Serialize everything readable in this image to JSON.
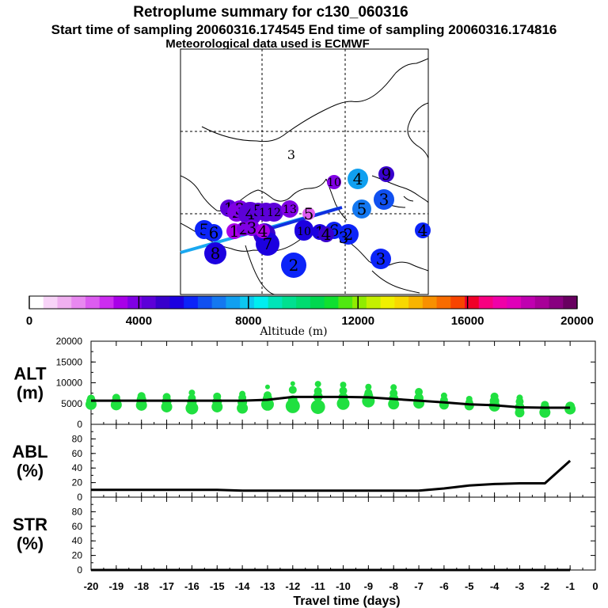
{
  "title": {
    "line1": "Retroplume summary for c130_060316",
    "line2": "Start time of sampling 20060316.174545     End time of sampling 20060316.174816",
    "line3": "Meteorological data used is ECMWF"
  },
  "colorbar": {
    "label": "Altitude (m)",
    "min": 0,
    "max": 20000,
    "tick_labels": [
      "0",
      "4000",
      "8000",
      "12000",
      "16000",
      "20000"
    ],
    "tick_values": [
      0,
      4000,
      8000,
      12000,
      16000,
      20000
    ],
    "colors": [
      "#ffffff",
      "#f8d4f8",
      "#f0b0f0",
      "#e888f0",
      "#dc5cf0",
      "#cc2cf0",
      "#a800e8",
      "#8000e4",
      "#5c00d8",
      "#3800cc",
      "#1c00e0",
      "#0c24f8",
      "#1050f0",
      "#1478f0",
      "#10a0f0",
      "#0cc8f0",
      "#00eef0",
      "#00e4b8",
      "#00e090",
      "#00dc70",
      "#00d850",
      "#10e030",
      "#50e810",
      "#90ec00",
      "#c4f000",
      "#f0f000",
      "#f8d800",
      "#f8b400",
      "#f89000",
      "#f86c00",
      "#f84400",
      "#f00028",
      "#f80080",
      "#f000a8",
      "#e000b8",
      "#c000b0",
      "#a80098",
      "#880080",
      "#680060"
    ]
  },
  "map_data": {
    "clusters": [
      {
        "label": "1",
        "alt": 4200,
        "size": 11
      },
      {
        "label": "2",
        "alt": 4100,
        "size": 12
      },
      {
        "label": "3",
        "alt": 4000,
        "size": 11
      },
      {
        "label": "4",
        "alt": 4300,
        "size": 15
      },
      {
        "label": "5",
        "alt": 4500,
        "size": 10
      },
      {
        "label": "6",
        "alt": 5000,
        "size": 14
      },
      {
        "label": "7",
        "alt": 5200,
        "size": 15
      },
      {
        "label": "8",
        "alt": 5600,
        "size": 14
      },
      {
        "label": "9",
        "alt": 5400,
        "size": 12
      },
      {
        "label": "10",
        "alt": 5600,
        "size": 12
      },
      {
        "label": "11",
        "alt": 4500,
        "size": 12
      },
      {
        "label": "12",
        "alt": 4600,
        "size": 12
      },
      {
        "label": "13",
        "alt": 3800,
        "size": 11
      },
      {
        "label": "5",
        "alt": 5800,
        "size": 12
      },
      {
        "label": "6",
        "alt": 5700,
        "size": 11
      },
      {
        "label": "1",
        "alt": 3400,
        "size": 10
      },
      {
        "label": "2",
        "alt": 3700,
        "size": 9
      },
      {
        "label": "3",
        "alt": 3600,
        "size": 10
      },
      {
        "label": "4",
        "alt": 3200,
        "size": 9
      },
      {
        "label": "5",
        "alt": 2400,
        "size": 8
      },
      {
        "label": "6",
        "alt": 5800,
        "size": 11
      },
      {
        "label": "1",
        "alt": 5400,
        "size": 10
      },
      {
        "label": "4",
        "alt": 5000,
        "size": 10
      },
      {
        "label": "2",
        "alt": 6000,
        "size": 13
      },
      {
        "label": "4",
        "alt": 7200,
        "size": 13
      },
      {
        "label": "9",
        "alt": 4800,
        "size": 10
      },
      {
        "label": "10",
        "alt": 3800,
        "size": 9
      },
      {
        "label": "5",
        "alt": 7000,
        "size": 12
      },
      {
        "label": "3",
        "alt": 6600,
        "size": 13
      },
      {
        "label": "3",
        "alt": 5800,
        "size": 13
      },
      {
        "label": "2",
        "alt": 5800,
        "size": 16
      },
      {
        "label": "4",
        "alt": 5800,
        "size": 10
      },
      {
        "label": "3",
        "alt": 6000,
        "size": 0
      }
    ]
  },
  "chart_data": [
    {
      "type": "scatter",
      "panel_label": [
        "ALT",
        "(m)"
      ],
      "xlim": [
        -20,
        0
      ],
      "ylim": [
        0,
        20000
      ],
      "ytick_labels": [
        "0",
        "5000",
        "10000",
        "15000",
        "20000"
      ],
      "ytick_values": [
        0,
        5000,
        10000,
        15000,
        20000
      ],
      "series": [
        {
          "name": "mean altitude",
          "style": "line",
          "color": "#000000",
          "x": [
            -20,
            -19,
            -18,
            -17,
            -16,
            -15,
            -14,
            -13,
            -12,
            -11,
            -10,
            -9,
            -8,
            -7,
            -6,
            -5,
            -4,
            -3,
            -2,
            -1
          ],
          "y": [
            5700,
            5700,
            5700,
            5700,
            5700,
            5700,
            5700,
            5900,
            6600,
            6600,
            6600,
            6500,
            6100,
            5700,
            5300,
            4800,
            4600,
            4100,
            4000,
            4000
          ]
        },
        {
          "name": "cluster altitudes",
          "style": "points",
          "color": "#20e040",
          "x": [
            -20,
            -20,
            -20,
            -19,
            -19,
            -19,
            -18,
            -18,
            -18,
            -18,
            -17,
            -17,
            -17,
            -16,
            -16,
            -16,
            -16,
            -15,
            -15,
            -15,
            -14,
            -14,
            -14,
            -14,
            -13,
            -13,
            -13,
            -13,
            -12,
            -12,
            -12,
            -12,
            -11,
            -11,
            -11,
            -11,
            -10,
            -10,
            -10,
            -10,
            -9,
            -9,
            -9,
            -9,
            -8,
            -8,
            -8,
            -8,
            -7,
            -7,
            -7,
            -6,
            -6,
            -6,
            -5,
            -5,
            -5,
            -4,
            -4,
            -4,
            -3,
            -3,
            -3,
            -3,
            -2,
            -2,
            -2,
            -1,
            -1
          ],
          "y": [
            4800,
            5600,
            6200,
            4700,
            5500,
            6400,
            4600,
            5300,
            6000,
            6800,
            4200,
            5500,
            6600,
            3900,
            5300,
            6300,
            7600,
            4200,
            5400,
            6700,
            3900,
            5300,
            6400,
            7300,
            4800,
            6200,
            7000,
            9000,
            4400,
            5800,
            8300,
            9800,
            4200,
            6700,
            8000,
            9700,
            5000,
            6500,
            8100,
            9500,
            5600,
            6800,
            7600,
            9000,
            4900,
            6200,
            7500,
            8900,
            5100,
            6300,
            7800,
            4700,
            5800,
            6900,
            4500,
            5200,
            6100,
            4400,
            5600,
            6700,
            2800,
            4100,
            5500,
            6400,
            2900,
            3900,
            4700,
            3700,
            4300
          ],
          "size": [
            7,
            6,
            5,
            7,
            6,
            5,
            7,
            6,
            6,
            5,
            7,
            6,
            5,
            8,
            6,
            5,
            4,
            7,
            6,
            5,
            7,
            6,
            5,
            4,
            8,
            6,
            5,
            3,
            9,
            6,
            5,
            3,
            9,
            6,
            5,
            4,
            8,
            6,
            5,
            4,
            8,
            6,
            5,
            4,
            7,
            6,
            5,
            4,
            7,
            6,
            5,
            6,
            5,
            4,
            6,
            5,
            4,
            7,
            6,
            5,
            6,
            6,
            5,
            4,
            7,
            6,
            5,
            7,
            6
          ]
        }
      ]
    },
    {
      "type": "line",
      "panel_label": [
        "ABL",
        "(%)"
      ],
      "xlim": [
        -20,
        0
      ],
      "ylim": [
        0,
        100
      ],
      "ytick_labels": [
        "0",
        "20",
        "40",
        "60",
        "80"
      ],
      "ytick_values": [
        0,
        20,
        40,
        60,
        80
      ],
      "x": [
        -20,
        -19,
        -18,
        -17,
        -16,
        -15,
        -14,
        -13,
        -12,
        -11,
        -10,
        -9,
        -8,
        -7,
        -6,
        -5,
        -4,
        -3,
        -2,
        -1
      ],
      "y": [
        10,
        10,
        10,
        10,
        10,
        10,
        9,
        9,
        9,
        9,
        9,
        9,
        9,
        9,
        12,
        16,
        18,
        19,
        19,
        50
      ]
    },
    {
      "type": "line",
      "panel_label": [
        "STR",
        "(%)"
      ],
      "xlim": [
        -20,
        0
      ],
      "ylim": [
        0,
        100
      ],
      "ytick_labels": [
        "0",
        "20",
        "40",
        "60",
        "80"
      ],
      "ytick_values": [
        0,
        20,
        40,
        60,
        80
      ],
      "x": [
        -20,
        -19,
        -18,
        -17,
        -16,
        -15,
        -14,
        -13,
        -12,
        -11,
        -10,
        -9,
        -8,
        -7,
        -6,
        -5,
        -4,
        -3,
        -2,
        -1
      ],
      "y": [
        0,
        0,
        0,
        0,
        0,
        0,
        0,
        0,
        0,
        0,
        0,
        0,
        0,
        0,
        0,
        0,
        0,
        0,
        0,
        0
      ]
    }
  ],
  "x_axis": {
    "label": "Travel time (days)",
    "tick_labels": [
      "-20",
      "-19",
      "-18",
      "-17",
      "-16",
      "-15",
      "-14",
      "-13",
      "-12",
      "-11",
      "-10",
      "-9",
      "-8",
      "-7",
      "-6",
      "-5",
      "-4",
      "-3",
      "-2",
      "-1",
      "0"
    ],
    "tick_values": [
      -20,
      -19,
      -18,
      -17,
      -16,
      -15,
      -14,
      -13,
      -12,
      -11,
      -10,
      -9,
      -8,
      -7,
      -6,
      -5,
      -4,
      -3,
      -2,
      -1,
      0
    ]
  }
}
